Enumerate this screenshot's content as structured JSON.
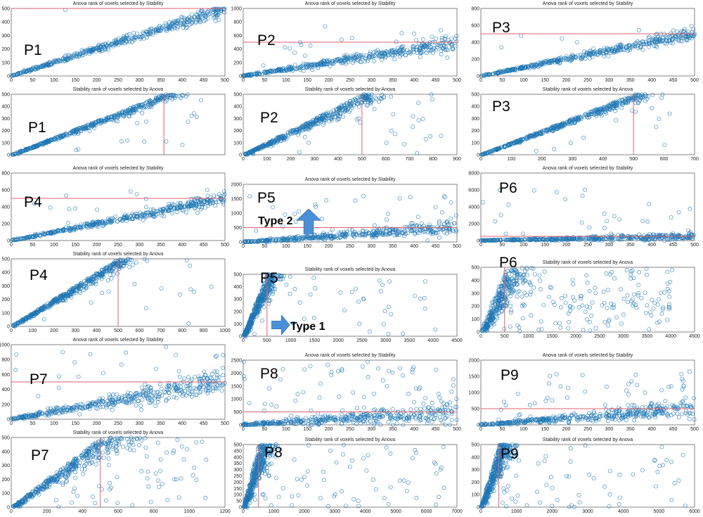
{
  "colors": {
    "marker": "#1f77b4",
    "reference_line": "#e06070",
    "axis": "#333333",
    "arrow": "#4a90d9"
  },
  "annotations": {
    "type2": "Type 2",
    "type1": "Type 1"
  },
  "chart_data": [
    {
      "type": "scatter",
      "label": "P1",
      "title": "Anova rank of voxels selected by Stability",
      "xlim": [
        0,
        500
      ],
      "ylim": [
        0,
        500
      ],
      "xticks": [
        0,
        50,
        100,
        150,
        200,
        250,
        300,
        350,
        400,
        450,
        500
      ],
      "yticks": [
        0,
        100,
        200,
        300,
        400,
        500
      ],
      "threshold": {
        "axis": "y",
        "value": 500
      },
      "pattern": {
        "n": 460,
        "xmax": 500,
        "slope": 1.0,
        "spread": 0.12,
        "outlier_frac": 0.02,
        "outlier_ymax": 540
      }
    },
    {
      "type": "scatter",
      "label": "P2",
      "title": "Anova rank of voxels selected by Stability",
      "xlim": [
        0,
        500
      ],
      "ylim": [
        0,
        1000
      ],
      "xticks": [
        0,
        50,
        100,
        150,
        200,
        250,
        300,
        350,
        400,
        450,
        500
      ],
      "yticks": [
        0,
        200,
        400,
        600,
        800,
        1000
      ],
      "threshold": {
        "axis": "y",
        "value": 500
      },
      "pattern": {
        "n": 460,
        "xmax": 500,
        "slope": 1.0,
        "spread": 0.25,
        "outlier_frac": 0.04,
        "outlier_ymax": 840
      }
    },
    {
      "type": "scatter",
      "label": "P3",
      "title": "Anova rank of voxels selected by Stability",
      "xlim": [
        0,
        500
      ],
      "ylim": [
        0,
        800
      ],
      "xticks": [
        0,
        50,
        100,
        150,
        200,
        250,
        300,
        350,
        400,
        450,
        500
      ],
      "yticks": [
        0,
        200,
        400,
        600,
        800
      ],
      "threshold": {
        "axis": "y",
        "value": 500
      },
      "pattern": {
        "n": 460,
        "xmax": 500,
        "slope": 1.0,
        "spread": 0.15,
        "outlier_frac": 0.02,
        "outlier_ymax": 620
      }
    },
    {
      "type": "scatter",
      "label": "P1",
      "title": "Stability rank of voxels selected by Anova",
      "xlim": [
        0,
        700
      ],
      "ylim": [
        0,
        500
      ],
      "xticks": [],
      "yticks": [
        0,
        100,
        200,
        300,
        400,
        500
      ],
      "threshold": {
        "axis": "x",
        "value": 500
      },
      "pattern": {
        "n": 460,
        "xmax": 500,
        "slope": 1.0,
        "spread": 0.15,
        "outlier_frac": 0.05,
        "outlier_xmax": 650,
        "ycap": 500
      }
    },
    {
      "type": "scatter",
      "label": "P2",
      "title": "Stability rank of voxels selected by Anova",
      "xlim": [
        0,
        900
      ],
      "ylim": [
        0,
        500
      ],
      "xticks": [
        0,
        100,
        200,
        300,
        400,
        500,
        600,
        700,
        800,
        900
      ],
      "yticks": [
        0,
        100,
        200,
        300,
        400,
        500
      ],
      "threshold": {
        "axis": "x",
        "value": 500
      },
      "pattern": {
        "n": 460,
        "xmax": 500,
        "slope": 1.0,
        "spread": 0.25,
        "outlier_frac": 0.06,
        "outlier_xmax": 840,
        "ycap": 500
      }
    },
    {
      "type": "scatter",
      "label": "P3",
      "title": "Stability rank of voxels selected by Anova",
      "xlim": [
        0,
        700
      ],
      "ylim": [
        0,
        500
      ],
      "xticks": [
        0,
        100,
        200,
        300,
        400,
        500,
        600,
        700
      ],
      "yticks": [
        0,
        100,
        200,
        300,
        400,
        500
      ],
      "threshold": {
        "axis": "x",
        "value": 500
      },
      "pattern": {
        "n": 460,
        "xmax": 500,
        "slope": 1.0,
        "spread": 0.15,
        "outlier_frac": 0.04,
        "outlier_xmax": 620,
        "ycap": 500
      }
    },
    {
      "type": "scatter",
      "label": "P4",
      "title": "Anova rank of voxels selected by Stability",
      "xlim": [
        0,
        500
      ],
      "ylim": [
        0,
        800
      ],
      "xticks": [
        0,
        50,
        100,
        150,
        200,
        250,
        300,
        350,
        400,
        450,
        500
      ],
      "yticks": [
        0,
        200,
        400,
        600,
        800
      ],
      "threshold": {
        "axis": "y",
        "value": 500
      },
      "pattern": {
        "n": 460,
        "xmax": 500,
        "slope": 1.0,
        "spread": 0.15,
        "outlier_frac": 0.02,
        "outlier_ymax": 660
      }
    },
    {
      "type": "scatter",
      "label": "P5",
      "title": "Anova rank of voxels selected by Stability",
      "xlim": [
        0,
        500
      ],
      "ylim": [
        0,
        2000
      ],
      "xticks": [
        0,
        50,
        100,
        150,
        200,
        250,
        300,
        350,
        400,
        450,
        500
      ],
      "yticks": [
        0,
        500,
        1000,
        1500,
        2000
      ],
      "threshold": {
        "axis": "y",
        "value": 500
      },
      "pattern": {
        "n": 460,
        "xmax": 500,
        "slope": 1.0,
        "spread": 0.5,
        "outlier_frac": 0.08,
        "outlier_ymax": 1700
      }
    },
    {
      "type": "scatter",
      "label": "P6",
      "title": "Anova rank of voxels selected by Stability",
      "xlim": [
        0,
        500
      ],
      "ylim": [
        0,
        8000
      ],
      "xticks": [
        0,
        50,
        100,
        150,
        200,
        250,
        300,
        350,
        400,
        450,
        500
      ],
      "yticks": [
        0,
        2000,
        4000,
        6000,
        8000
      ],
      "threshold": {
        "axis": "y",
        "value": 500
      },
      "pattern": {
        "n": 460,
        "xmax": 500,
        "slope": 1.0,
        "spread": 0.9,
        "outlier_frac": 0.06,
        "outlier_ymax": 6600
      }
    },
    {
      "type": "scatter",
      "label": "P4",
      "title": "Stability rank of voxels selected by Anova",
      "xlim": [
        0,
        1000
      ],
      "ylim": [
        0,
        500
      ],
      "xticks": [
        0,
        100,
        200,
        300,
        400,
        500,
        600,
        700,
        800,
        900,
        1000
      ],
      "yticks": [
        0,
        100,
        200,
        300,
        400,
        500
      ],
      "threshold": {
        "axis": "x",
        "value": 500
      },
      "pattern": {
        "n": 460,
        "xmax": 500,
        "slope": 1.0,
        "spread": 0.2,
        "outlier_frac": 0.04,
        "outlier_xmax": 980,
        "ycap": 500
      }
    },
    {
      "type": "scatter",
      "label": "P5",
      "title": "Stability rank of voxels selected by Anova",
      "xlim": [
        0,
        4500
      ],
      "ylim": [
        0,
        500
      ],
      "xticks": [
        0,
        500,
        1000,
        1500,
        2000,
        2500,
        3000,
        3500,
        4000,
        4500
      ],
      "yticks": [
        0,
        100,
        200,
        300,
        400,
        500
      ],
      "threshold": {
        "axis": "x",
        "value": 500
      },
      "pattern": {
        "n": 460,
        "xmax": 500,
        "slope": 1.0,
        "spread": 0.6,
        "outlier_frac": 0.08,
        "outlier_xmax": 4050,
        "ycap": 500
      }
    },
    {
      "type": "scatter",
      "label": "P6",
      "title": "Stability rank of voxels selected by Anova",
      "xlim": [
        0,
        4500
      ],
      "ylim": [
        0,
        500
      ],
      "xticks": [
        0,
        500,
        1000,
        1500,
        2000,
        2500,
        3000,
        3500,
        4000,
        4500
      ],
      "yticks": [
        0,
        100,
        200,
        300,
        400,
        500
      ],
      "threshold": {
        "axis": "x",
        "value": 500
      },
      "pattern": {
        "n": 460,
        "xmax": 500,
        "slope": 1.0,
        "spread": 1.5,
        "outlier_frac": 0.35,
        "outlier_xmax": 4050,
        "ycap": 500
      }
    },
    {
      "type": "scatter",
      "label": "P7",
      "title": "Anova rank of voxels selected by Stability",
      "xlim": [
        0,
        500
      ],
      "ylim": [
        0,
        1000
      ],
      "xticks": [
        0,
        50,
        100,
        150,
        200,
        250,
        300,
        350,
        400,
        450,
        500
      ],
      "yticks": [
        0,
        200,
        400,
        600,
        800,
        1000
      ],
      "threshold": {
        "axis": "y",
        "value": 500
      },
      "pattern": {
        "n": 460,
        "xmax": 500,
        "slope": 1.0,
        "spread": 0.35,
        "outlier_frac": 0.05,
        "outlier_ymax": 980
      }
    },
    {
      "type": "scatter",
      "label": "P8",
      "title": "Anova rank of voxels selected by Stability",
      "xlim": [
        0,
        500
      ],
      "ylim": [
        0,
        2500
      ],
      "xticks": [
        0,
        50,
        100,
        150,
        200,
        250,
        300,
        350,
        400,
        450,
        500
      ],
      "yticks": [
        0,
        500,
        1000,
        1500,
        2000,
        2500
      ],
      "threshold": {
        "axis": "y",
        "value": 500
      },
      "pattern": {
        "n": 460,
        "xmax": 500,
        "slope": 1.0,
        "spread": 0.9,
        "outlier_frac": 0.15,
        "outlier_ymax": 2450
      }
    },
    {
      "type": "scatter",
      "label": "P9",
      "title": "Anova rank of voxels selected by Stability",
      "xlim": [
        0,
        500
      ],
      "ylim": [
        0,
        2000
      ],
      "xticks": [
        0,
        50,
        100,
        150,
        200,
        250,
        300,
        350,
        400,
        450,
        500
      ],
      "yticks": [
        0,
        500,
        1000,
        1500,
        2000
      ],
      "threshold": {
        "axis": "y",
        "value": 500
      },
      "pattern": {
        "n": 460,
        "xmax": 500,
        "slope": 1.0,
        "spread": 0.6,
        "outlier_frac": 0.1,
        "outlier_ymax": 1650
      }
    },
    {
      "type": "scatter",
      "label": "P7",
      "title": "Stability rank of voxels selected by Anova",
      "xlim": [
        0,
        1200
      ],
      "ylim": [
        0,
        500
      ],
      "xticks": [
        0,
        200,
        400,
        600,
        800,
        1000,
        1200
      ],
      "yticks": [
        0,
        100,
        200,
        300,
        400,
        500
      ],
      "threshold": {
        "axis": "x",
        "value": 500
      },
      "pattern": {
        "n": 460,
        "xmax": 500,
        "slope": 1.0,
        "spread": 0.4,
        "outlier_frac": 0.12,
        "outlier_xmax": 1100,
        "ycap": 500
      }
    },
    {
      "type": "scatter",
      "label": "P8",
      "title": "Stability rank of voxels selected by Anova",
      "xlim": [
        0,
        7000
      ],
      "ylim": [
        0,
        500
      ],
      "xticks": [
        0,
        1000,
        2000,
        3000,
        4000,
        5000,
        6000,
        7000
      ],
      "yticks": [
        0,
        50,
        100,
        150,
        200,
        250,
        300,
        350,
        400,
        450,
        500
      ],
      "threshold": {
        "axis": "x",
        "value": 500
      },
      "pattern": {
        "n": 460,
        "xmax": 500,
        "slope": 1.0,
        "spread": 1.2,
        "outlier_frac": 0.15,
        "outlier_xmax": 6600,
        "ycap": 500
      }
    },
    {
      "type": "scatter",
      "label": "P9",
      "title": "Stability rank of voxels selected by Anova",
      "xlim": [
        0,
        6000
      ],
      "ylim": [
        0,
        500
      ],
      "xticks": [
        0,
        1000,
        2000,
        3000,
        4000,
        5000,
        6000
      ],
      "yticks": [
        0,
        100,
        200,
        300,
        400,
        500
      ],
      "threshold": {
        "axis": "x",
        "value": 500
      },
      "pattern": {
        "n": 460,
        "xmax": 500,
        "slope": 1.0,
        "spread": 1.0,
        "outlier_frac": 0.15,
        "outlier_xmax": 5800,
        "ycap": 500
      }
    }
  ]
}
